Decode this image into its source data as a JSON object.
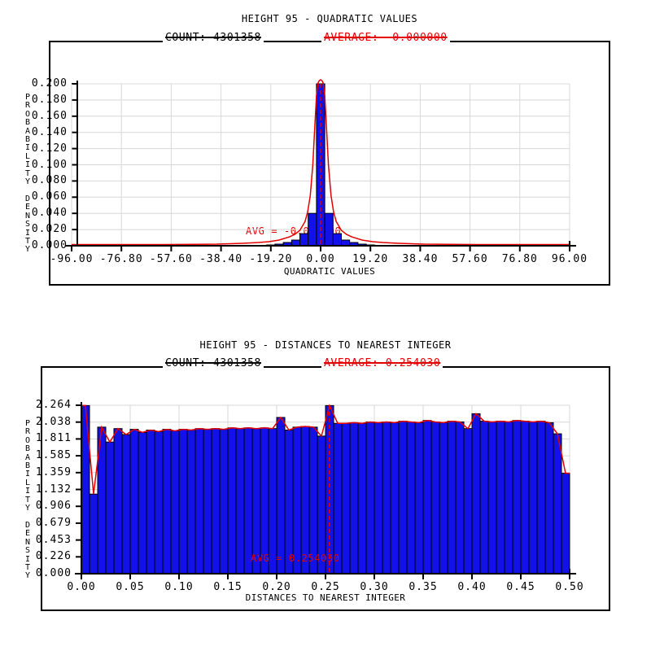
{
  "page": {
    "background": "#ffffff"
  },
  "colors": {
    "bar_fill": "#1212e8",
    "curve_red": "#e50000",
    "grid": "#d8d8d8",
    "axis": "#000000"
  },
  "chart_data": [
    {
      "type": "bar",
      "title": "HEIGHT 95 - QUADRATIC VALUES",
      "count_label": "COUNT: 4301358",
      "average_label": "AVERAGE: -0.000000",
      "avg_annotation": "AVG = -0.000000",
      "xlabel": "QUADRATIC VALUES",
      "ylabel": "PROBABILITY DENSITY",
      "xlim": [
        -96,
        96
      ],
      "ylim": [
        0,
        0.2
      ],
      "x_ticks": [
        "-96.00",
        "-76.80",
        "-57.60",
        "-38.40",
        "-19.20",
        "0.00",
        "19.20",
        "38.40",
        "57.60",
        "76.80",
        "96.00"
      ],
      "y_ticks": [
        "0.200",
        "0.180",
        "0.160",
        "0.140",
        "0.120",
        "0.100",
        "0.080",
        "0.060",
        "0.040",
        "0.020",
        "0.000"
      ],
      "grid": true,
      "legend_position": "none",
      "bin_width": 3.2,
      "avg": 0,
      "bars": [
        [
          -22.4,
          0.0005
        ],
        [
          -19.2,
          0.001
        ],
        [
          -16,
          0.002
        ],
        [
          -12.8,
          0.004
        ],
        [
          -9.6,
          0.007
        ],
        [
          -6.4,
          0.015
        ],
        [
          -3.2,
          0.04
        ],
        [
          0,
          0.2
        ],
        [
          3.2,
          0.04
        ],
        [
          6.4,
          0.015
        ],
        [
          9.6,
          0.007
        ],
        [
          12.8,
          0.004
        ],
        [
          16,
          0.002
        ],
        [
          19.2,
          0.001
        ],
        [
          22.4,
          0.0005
        ]
      ],
      "curve": [
        [
          -96,
          0.0015
        ],
        [
          -60,
          0.0015
        ],
        [
          -40,
          0.002
        ],
        [
          -30,
          0.003
        ],
        [
          -24,
          0.004
        ],
        [
          -20,
          0.005
        ],
        [
          -16,
          0.007
        ],
        [
          -12,
          0.011
        ],
        [
          -10,
          0.014
        ],
        [
          -8,
          0.019
        ],
        [
          -6,
          0.03
        ],
        [
          -5,
          0.042
        ],
        [
          -4,
          0.062
        ],
        [
          -3,
          0.1
        ],
        [
          -2.2,
          0.15
        ],
        [
          -1.6,
          0.185
        ],
        [
          -1,
          0.201
        ],
        [
          -0.5,
          0.204
        ],
        [
          0,
          0.205
        ],
        [
          0.5,
          0.204
        ],
        [
          1,
          0.201
        ],
        [
          1.6,
          0.185
        ],
        [
          2.2,
          0.15
        ],
        [
          3,
          0.1
        ],
        [
          4,
          0.062
        ],
        [
          5,
          0.042
        ],
        [
          6,
          0.03
        ],
        [
          8,
          0.019
        ],
        [
          10,
          0.014
        ],
        [
          12,
          0.011
        ],
        [
          16,
          0.007
        ],
        [
          20,
          0.005
        ],
        [
          24,
          0.004
        ],
        [
          30,
          0.003
        ],
        [
          40,
          0.002
        ],
        [
          60,
          0.0015
        ],
        [
          96,
          0.0015
        ]
      ]
    },
    {
      "type": "bar",
      "title": "HEIGHT 95 - DISTANCES TO NEAREST INTEGER",
      "count_label": "COUNT: 4301358",
      "average_label": "AVERAGE: 0.254030",
      "avg_annotation": "AVG = 0.254030",
      "xlabel": "DISTANCES TO NEAREST INTEGER",
      "ylabel": "PROBABILITY DENSITY",
      "xlim": [
        0,
        0.5
      ],
      "ylim": [
        0,
        2.264
      ],
      "x_ticks": [
        "0.00",
        "0.05",
        "0.10",
        "0.15",
        "0.20",
        "0.25",
        "0.30",
        "0.35",
        "0.40",
        "0.45",
        "0.50"
      ],
      "y_ticks": [
        "2.264",
        "2.038",
        "1.811",
        "1.585",
        "1.359",
        "1.132",
        "0.906",
        "0.679",
        "0.453",
        "0.226",
        "0.000"
      ],
      "grid": true,
      "legend_position": "none",
      "bin_width": 0.008333,
      "avg": 0.254,
      "bars": [
        [
          0.0042,
          2.26
        ],
        [
          0.0125,
          1.07
        ],
        [
          0.0208,
          1.97
        ],
        [
          0.0292,
          1.77
        ],
        [
          0.0375,
          1.95
        ],
        [
          0.0458,
          1.87
        ],
        [
          0.0542,
          1.94
        ],
        [
          0.0625,
          1.9
        ],
        [
          0.0708,
          1.93
        ],
        [
          0.0792,
          1.91
        ],
        [
          0.0875,
          1.94
        ],
        [
          0.0958,
          1.92
        ],
        [
          0.1042,
          1.94
        ],
        [
          0.1125,
          1.93
        ],
        [
          0.1208,
          1.95
        ],
        [
          0.1292,
          1.94
        ],
        [
          0.1375,
          1.95
        ],
        [
          0.1458,
          1.94
        ],
        [
          0.1542,
          1.96
        ],
        [
          0.1625,
          1.95
        ],
        [
          0.1708,
          1.96
        ],
        [
          0.1792,
          1.95
        ],
        [
          0.1875,
          1.96
        ],
        [
          0.1958,
          1.95
        ],
        [
          0.2042,
          2.1
        ],
        [
          0.2125,
          1.93
        ],
        [
          0.2208,
          1.97
        ],
        [
          0.2292,
          1.98
        ],
        [
          0.2375,
          1.97
        ],
        [
          0.2458,
          1.85
        ],
        [
          0.2542,
          2.26
        ],
        [
          0.2625,
          2.02
        ],
        [
          0.2708,
          2.02
        ],
        [
          0.2792,
          2.03
        ],
        [
          0.2875,
          2.02
        ],
        [
          0.2958,
          2.04
        ],
        [
          0.3042,
          2.03
        ],
        [
          0.3125,
          2.04
        ],
        [
          0.3208,
          2.03
        ],
        [
          0.3292,
          2.05
        ],
        [
          0.3375,
          2.04
        ],
        [
          0.3458,
          2.03
        ],
        [
          0.3542,
          2.06
        ],
        [
          0.3625,
          2.04
        ],
        [
          0.3708,
          2.03
        ],
        [
          0.3792,
          2.05
        ],
        [
          0.3875,
          2.04
        ],
        [
          0.3958,
          1.95
        ],
        [
          0.4042,
          2.15
        ],
        [
          0.4125,
          2.05
        ],
        [
          0.4208,
          2.04
        ],
        [
          0.4292,
          2.05
        ],
        [
          0.4375,
          2.04
        ],
        [
          0.4458,
          2.06
        ],
        [
          0.4542,
          2.05
        ],
        [
          0.4625,
          2.04
        ],
        [
          0.4708,
          2.05
        ],
        [
          0.4792,
          2.03
        ],
        [
          0.4875,
          1.88
        ],
        [
          0.4958,
          1.35
        ]
      ]
    }
  ]
}
